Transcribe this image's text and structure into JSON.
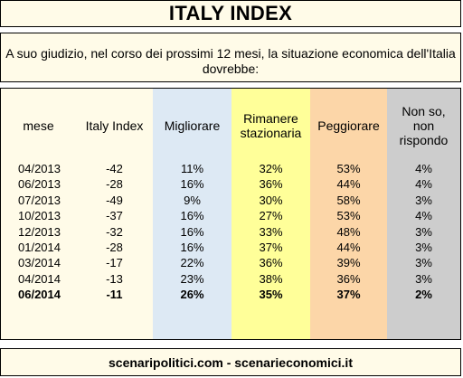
{
  "title": "ITALY INDEX",
  "question": "A suo giudizio, nel corso dei prossimi 12 mesi, la situazione economica dell'Italia dovrebbe:",
  "table": {
    "headers": [
      "mese",
      "Italy Index",
      "Migliorare",
      "Rimanere stazionaria",
      "Peggiorare",
      "Non so, non rispondo"
    ],
    "rows": [
      [
        "04/2013",
        "-42",
        "11%",
        "32%",
        "53%",
        "4%"
      ],
      [
        "06/2013",
        "-28",
        "16%",
        "36%",
        "44%",
        "4%"
      ],
      [
        "07/2013",
        "-49",
        "9%",
        "30%",
        "58%",
        "3%"
      ],
      [
        "10/2013",
        "-37",
        "16%",
        "27%",
        "53%",
        "4%"
      ],
      [
        "12/2013",
        "-32",
        "16%",
        "33%",
        "48%",
        "3%"
      ],
      [
        "01/2014",
        "-28",
        "16%",
        "37%",
        "44%",
        "3%"
      ],
      [
        "03/2014",
        "-17",
        "22%",
        "36%",
        "39%",
        "3%"
      ],
      [
        "04/2014",
        "-13",
        "23%",
        "38%",
        "36%",
        "3%"
      ],
      [
        "06/2014",
        "-11",
        "26%",
        "35%",
        "37%",
        "2%"
      ]
    ],
    "bold_last_row": true
  },
  "footer": "scenaripolitici.com - scenarieconomici.it",
  "colors": {
    "panel_bg": "#fffbe8",
    "migliorare_bg": "#dde9f4",
    "rimanere_bg": "#ffff99",
    "peggiorare_bg": "#fcd6a8",
    "nonso_bg": "#cdcdcd"
  }
}
